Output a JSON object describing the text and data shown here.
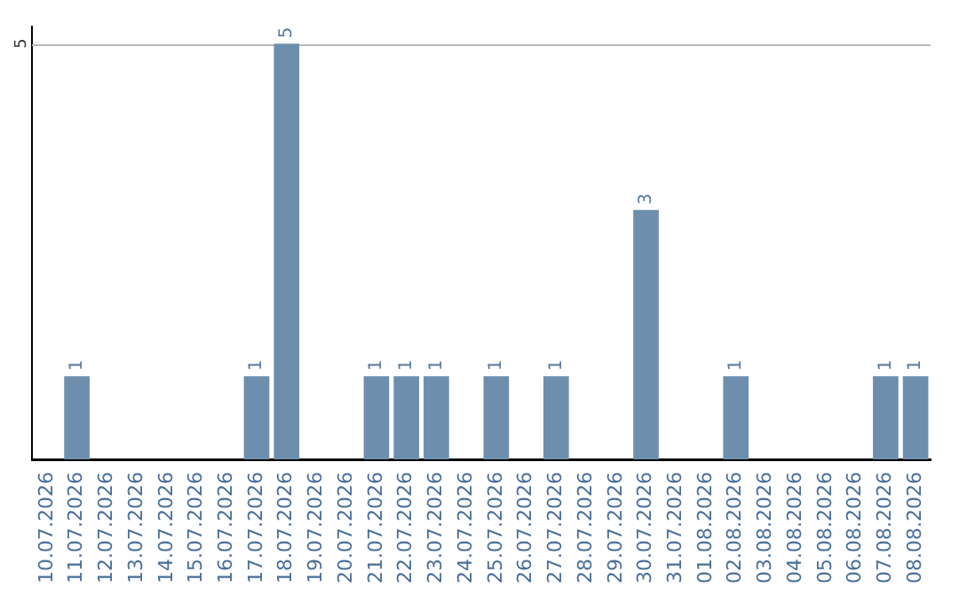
{
  "chart_data": {
    "type": "bar",
    "categories": [
      "10.07.2026",
      "11.07.2026",
      "12.07.2026",
      "13.07.2026",
      "14.07.2026",
      "15.07.2026",
      "16.07.2026",
      "17.07.2026",
      "18.07.2026",
      "19.07.2026",
      "20.07.2026",
      "21.07.2026",
      "22.07.2026",
      "23.07.2026",
      "24.07.2026",
      "25.07.2026",
      "26.07.2026",
      "27.07.2026",
      "28.07.2026",
      "29.07.2026",
      "30.07.2026",
      "31.07.2026",
      "01.08.2026",
      "02.08.2026",
      "03.08.2026",
      "04.08.2026",
      "05.08.2026",
      "06.08.2026",
      "07.08.2026",
      "08.08.2026"
    ],
    "values": [
      0,
      1,
      0,
      0,
      0,
      0,
      0,
      1,
      5,
      0,
      0,
      1,
      1,
      1,
      0,
      1,
      0,
      1,
      0,
      0,
      3,
      0,
      0,
      1,
      0,
      0,
      0,
      0,
      1,
      1
    ],
    "value_labels": [
      null,
      "1",
      null,
      null,
      null,
      null,
      null,
      "1",
      "5",
      null,
      null,
      "1",
      "1",
      "1",
      null,
      "1",
      null,
      "1",
      null,
      null,
      "3",
      null,
      null,
      "1",
      null,
      null,
      null,
      null,
      "1",
      "1"
    ],
    "color": "#6d8fad",
    "ylim": [
      0,
      5.2
    ],
    "yticks": [
      5
    ],
    "grid": "y",
    "legend": false
  }
}
